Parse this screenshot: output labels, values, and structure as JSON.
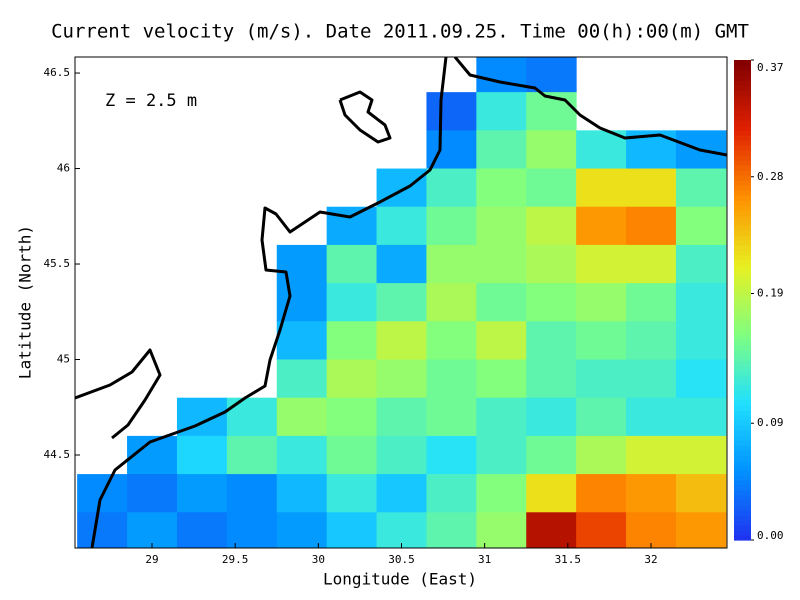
{
  "chart_data": {
    "type": "velocity-map",
    "title": "Current velocity (m/s). Date 2011.09.25. Time 00(h):00(m) GMT",
    "annotation": "Z = 2.5 m",
    "x_label": "Longitude (East)",
    "y_label": "Latitude (North)",
    "xlim": [
      28.537,
      32.457
    ],
    "ylim": [
      44.013,
      46.584
    ],
    "xticks": [
      29,
      29.5,
      30,
      30.5,
      31,
      31.5,
      32
    ],
    "yticks": [
      44.5,
      45,
      45.5,
      46,
      46.5
    ],
    "clim": [
      0,
      0.37
    ],
    "cticks": [
      {
        "value": 0,
        "label": "0.00"
      },
      0.09,
      0.19,
      0.28,
      0.37
    ],
    "colormap": [
      "#2030f0",
      "#0090ff",
      "#20e0ff",
      "#80ff80",
      "#e8f020",
      "#ff9000",
      "#e02000",
      "#800000"
    ],
    "lon": [
      28.7,
      29.0,
      29.3,
      29.6,
      29.9,
      30.2,
      30.5,
      30.8,
      31.1,
      31.4,
      31.7,
      32.0,
      32.3
    ],
    "lat": [
      46.5,
      46.3,
      46.1,
      45.9,
      45.7,
      45.5,
      45.3,
      45.1,
      44.9,
      44.7,
      44.5,
      44.3,
      44.1
    ],
    "speed": [
      [
        null,
        null,
        null,
        null,
        null,
        null,
        null,
        null,
        0.05,
        0.04,
        null,
        null,
        null
      ],
      [
        null,
        null,
        null,
        null,
        null,
        null,
        null,
        0.03,
        0.12,
        0.15,
        null,
        null,
        null
      ],
      [
        null,
        null,
        null,
        null,
        null,
        null,
        null,
        0.05,
        0.14,
        0.17,
        0.12,
        0.08,
        0.06
      ],
      [
        null,
        null,
        null,
        null,
        null,
        null,
        0.08,
        0.13,
        0.16,
        0.15,
        0.22,
        0.22,
        0.14
      ],
      [
        null,
        null,
        null,
        null,
        null,
        0.07,
        0.12,
        0.15,
        0.17,
        0.19,
        0.26,
        0.27,
        0.16
      ],
      [
        null,
        null,
        null,
        null,
        0.06,
        0.14,
        0.07,
        0.17,
        0.17,
        0.18,
        0.2,
        0.2,
        0.13
      ],
      [
        null,
        null,
        null,
        null,
        0.06,
        0.12,
        0.14,
        0.18,
        0.15,
        0.16,
        0.17,
        0.15,
        0.12
      ],
      [
        null,
        null,
        null,
        null,
        0.08,
        0.16,
        0.19,
        0.16,
        0.19,
        0.14,
        0.15,
        0.14,
        0.12
      ],
      [
        null,
        null,
        null,
        null,
        0.13,
        0.18,
        0.17,
        0.15,
        0.16,
        0.14,
        0.13,
        0.13,
        0.11
      ],
      [
        null,
        null,
        0.08,
        0.12,
        0.17,
        0.16,
        0.14,
        0.15,
        0.13,
        0.12,
        0.14,
        0.12,
        0.12
      ],
      [
        null,
        0.06,
        0.1,
        0.14,
        0.12,
        0.15,
        0.13,
        0.11,
        0.13,
        0.15,
        0.18,
        0.2,
        0.2
      ],
      [
        0.05,
        0.04,
        0.06,
        0.05,
        0.08,
        0.12,
        0.09,
        0.13,
        0.16,
        0.22,
        0.27,
        0.26,
        0.24
      ],
      [
        0.04,
        0.06,
        0.04,
        0.05,
        0.06,
        0.09,
        0.12,
        0.14,
        0.17,
        0.34,
        0.3,
        0.27,
        0.26
      ]
    ]
  }
}
